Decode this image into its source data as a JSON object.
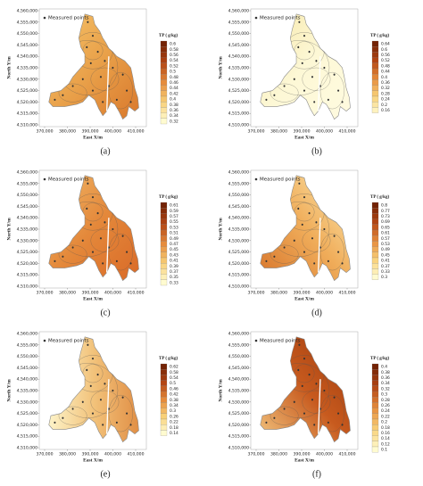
{
  "panels": [
    {
      "label": "(a)",
      "legend": "Measured points",
      "colorbar_title": "TP ( g/kg)",
      "y_axis_title": "North Y/m",
      "x_axis_title": "East X/m",
      "yticks": [
        "4,560,000",
        "4,555,000",
        "4,550,000",
        "4,545,000",
        "4,540,000",
        "4,535,000",
        "4,530,000",
        "4,525,000",
        "4,520,000",
        "4,515,000",
        "4,510,000"
      ],
      "xticks": [
        "370,000",
        "380,000",
        "390,000",
        "400,000",
        "410,000"
      ],
      "colorbar_labels": [
        "0.6",
        "0.58",
        "0.56",
        "0.54",
        "0.52",
        "0.5",
        "0.48",
        "0.46",
        "0.44",
        "0.42",
        "0.4",
        "0.38",
        "0.36",
        "0.34",
        "0.32"
      ]
    },
    {
      "label": "(b)",
      "legend": "Measured points",
      "colorbar_title": "TP ( g/kg)",
      "y_axis_title": "North Y/m",
      "x_axis_title": "East X/m",
      "yticks": [
        "4,560,000",
        "4,555,000",
        "4,550,000",
        "4,545,000",
        "4,540,000",
        "4,535,000",
        "4,530,000",
        "4,525,000",
        "4,520,000",
        "4,515,000",
        "4,510,000"
      ],
      "xticks": [
        "370,000",
        "380,000",
        "390,000",
        "400,000",
        "410,000"
      ],
      "colorbar_labels": [
        "0.64",
        "0.6",
        "0.56",
        "0.52",
        "0.48",
        "0.44",
        "0.4",
        "0.36",
        "0.32",
        "0.28",
        "0.24",
        "0.2",
        "0.16"
      ]
    },
    {
      "label": "(c)",
      "legend": "Measured points",
      "colorbar_title": "TP ( g/kg)",
      "y_axis_title": "North Y/m",
      "x_axis_title": "East X/m",
      "yticks": [
        "4,560,000",
        "4,555,000",
        "4,550,000",
        "4,545,000",
        "4,540,000",
        "4,535,000",
        "4,530,000",
        "4,525,000",
        "4,520,000",
        "4,515,000",
        "4,510,000"
      ],
      "xticks": [
        "370,000",
        "380,000",
        "390,000",
        "400,000",
        "410,000"
      ],
      "colorbar_labels": [
        "0.61",
        "0.59",
        "0.57",
        "0.55",
        "0.53",
        "0.51",
        "0.49",
        "0.47",
        "0.45",
        "0.43",
        "0.41",
        "0.39",
        "0.37",
        "0.35",
        "0.33"
      ]
    },
    {
      "label": "(d)",
      "legend": "Measured points",
      "colorbar_title": "TP ( g/kg)",
      "y_axis_title": "North Y/m",
      "x_axis_title": "East X/m",
      "yticks": [
        "4,560,000",
        "4,555,000",
        "4,550,000",
        "4,545,000",
        "4,540,000",
        "4,535,000",
        "4,530,000",
        "4,525,000",
        "4,520,000",
        "4,515,000",
        "4,510,000"
      ],
      "xticks": [
        "370,000",
        "380,000",
        "390,000",
        "400,000",
        "410,000"
      ],
      "colorbar_labels": [
        "0.8",
        "0.77",
        "0.73",
        "0.69",
        "0.65",
        "0.61",
        "0.57",
        "0.53",
        "0.49",
        "0.45",
        "0.41",
        "0.37",
        "0.33",
        "0.3"
      ]
    },
    {
      "label": "(e)",
      "legend": "Measured points",
      "colorbar_title": "TP ( g/kg)",
      "y_axis_title": "North Y/m",
      "x_axis_title": "East X/m",
      "yticks": [
        "4,560,000",
        "4,555,000",
        "4,550,000",
        "4,545,000",
        "4,540,000",
        "4,535,000",
        "4,530,000",
        "4,525,000",
        "4,520,000",
        "4,515,000",
        "4,510,000"
      ],
      "xticks": [
        "370,000",
        "380,000",
        "390,000",
        "400,000",
        "410,000"
      ],
      "colorbar_labels": [
        "0.62",
        "0.58",
        "0.54",
        "0.5",
        "0.46",
        "0.42",
        "0.38",
        "0.34",
        "0.3",
        "0.26",
        "0.22",
        "0.18",
        "0.14"
      ]
    },
    {
      "label": "(f)",
      "legend": "Measured points",
      "colorbar_title": "TP ( g/kg)",
      "y_axis_title": "North Y/m",
      "x_axis_title": "East X/m",
      "yticks": [
        "4,560,000",
        "4,555,000",
        "4,550,000",
        "4,545,000",
        "4,540,000",
        "4,535,000",
        "4,530,000",
        "4,525,000",
        "4,520,000",
        "4,515,000",
        "4,510,000"
      ],
      "xticks": [
        "370,000",
        "380,000",
        "390,000",
        "400,000",
        "410,000"
      ],
      "colorbar_labels": [
        "0.4",
        "0.38",
        "0.36",
        "0.34",
        "0.32",
        "0.3",
        "0.28",
        "0.26",
        "0.24",
        "0.22",
        "0.2",
        "0.18",
        "0.16",
        "0.14",
        "0.12",
        "0.1"
      ]
    }
  ]
}
